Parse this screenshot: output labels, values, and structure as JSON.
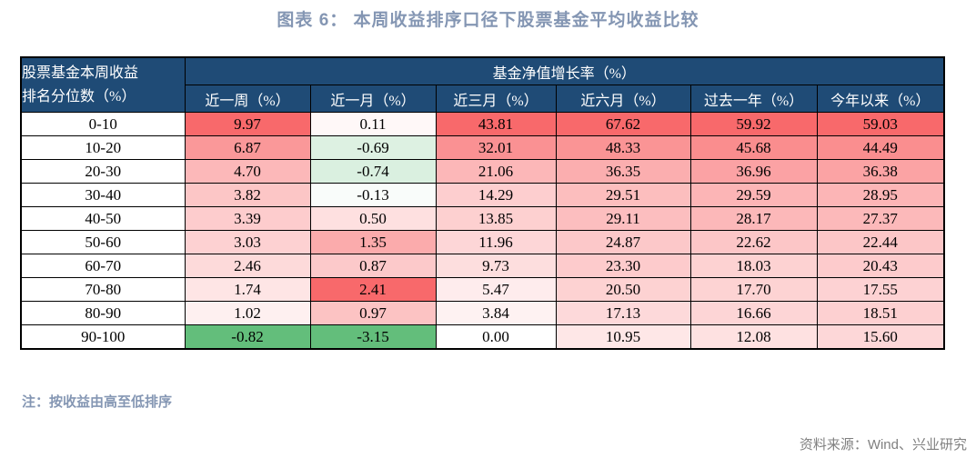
{
  "page": {
    "title": "图表 6： 本周收益排序口径下股票基金平均收益比较",
    "note": "注：按收益由高至低排序",
    "source": "资料来源：Wind、兴业研究"
  },
  "colors": {
    "header_bg": "#1F4B76",
    "header_text": "#FFFFFF",
    "heat_max_red": "#F8696B",
    "heat_min_green": "#63BE7B",
    "heat_neutral": "#FFFFFF",
    "title_text": "#8496B3",
    "source_text": "#808080",
    "border": "#000000"
  },
  "chart_data": {
    "type": "table",
    "title": "图表 6： 本周收益排序口径下股票基金平均收益比较",
    "corner_header_line1": "股票基金本周收益",
    "corner_header_line2": "排名分位数（%）",
    "group_header": "基金净值增长率（%）",
    "columns": [
      "近一周（%）",
      "近一月（%）",
      "近三月（%）",
      "近六月（%）",
      "过去一年（%）",
      "今年以来（%）"
    ],
    "row_labels": [
      "0-10",
      "10-20",
      "20-30",
      "30-40",
      "40-50",
      "50-60",
      "60-70",
      "70-80",
      "80-90",
      "90-100"
    ],
    "values": [
      [
        9.97,
        0.11,
        43.81,
        67.62,
        59.92,
        59.03
      ],
      [
        6.87,
        -0.69,
        32.01,
        48.33,
        45.68,
        44.49
      ],
      [
        4.7,
        -0.74,
        21.06,
        36.35,
        36.96,
        36.38
      ],
      [
        3.82,
        -0.13,
        14.29,
        29.51,
        29.59,
        28.95
      ],
      [
        3.39,
        0.5,
        13.85,
        29.11,
        28.17,
        27.37
      ],
      [
        3.03,
        1.35,
        11.96,
        24.87,
        22.62,
        22.44
      ],
      [
        2.46,
        0.87,
        9.73,
        23.3,
        18.03,
        20.43
      ],
      [
        1.74,
        2.41,
        5.47,
        20.5,
        17.7,
        17.55
      ],
      [
        1.02,
        0.97,
        3.84,
        17.13,
        16.66,
        18.51
      ],
      [
        -0.82,
        -3.15,
        0.0,
        10.95,
        12.08,
        15.6
      ]
    ],
    "value_format": "2 decimals",
    "heatmap_rule": "per column: value 0 maps to white, column max maps to red #F8696B (positive values interpolated white->red by v/max), negative values interpolated white->green #63BE7B by v/min",
    "legend_position": "none",
    "grid": "all cell borders black"
  }
}
